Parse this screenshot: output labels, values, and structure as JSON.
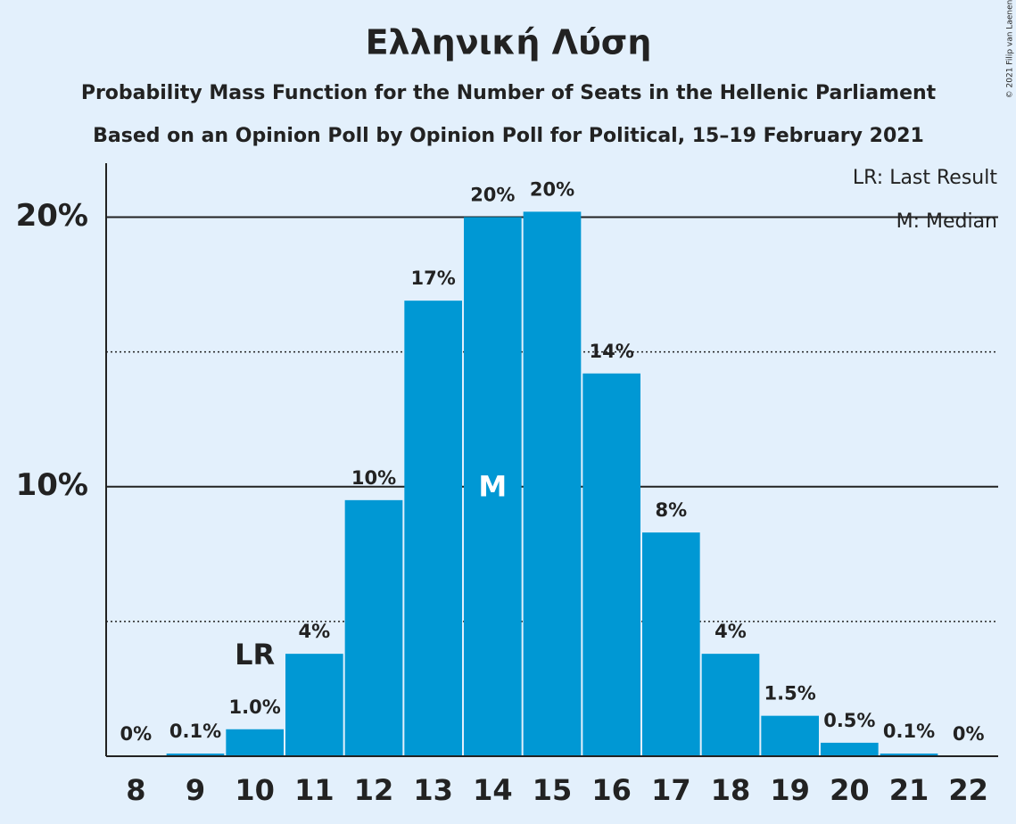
{
  "chart_data": {
    "type": "bar",
    "title": "Ελληνική Λύση",
    "subtitle": "Probability Mass Function for the Number of Seats in the Hellenic Parliament",
    "subtitle2": "Based on an Opinion Poll by Opinion Poll for Political, 15–19 February 2021",
    "copyright": "© 2021 Filip van Laenen",
    "categories": [
      "8",
      "9",
      "10",
      "11",
      "12",
      "13",
      "14",
      "15",
      "16",
      "17",
      "18",
      "19",
      "20",
      "21",
      "22"
    ],
    "values": [
      0,
      0.1,
      1.0,
      3.8,
      9.5,
      16.9,
      20.0,
      20.2,
      14.2,
      8.3,
      3.8,
      1.5,
      0.5,
      0.1,
      0
    ],
    "value_labels": [
      "0%",
      "0.1%",
      "1.0%",
      "4%",
      "10%",
      "17%",
      "20%",
      "20%",
      "14%",
      "8%",
      "4%",
      "1.5%",
      "0.5%",
      "0.1%",
      "0%"
    ],
    "color": "#0098d4",
    "ylim": [
      0,
      22
    ],
    "yticks": [
      {
        "value": 10,
        "label": "10%"
      },
      {
        "value": 20,
        "label": "20%"
      }
    ],
    "minor_yticks": [
      5,
      15
    ],
    "grid": true,
    "markers": [
      {
        "label": "LR",
        "category": "10"
      },
      {
        "label": "M",
        "category": "14"
      }
    ],
    "legend": [
      "LR: Last Result",
      "M: Median"
    ]
  }
}
